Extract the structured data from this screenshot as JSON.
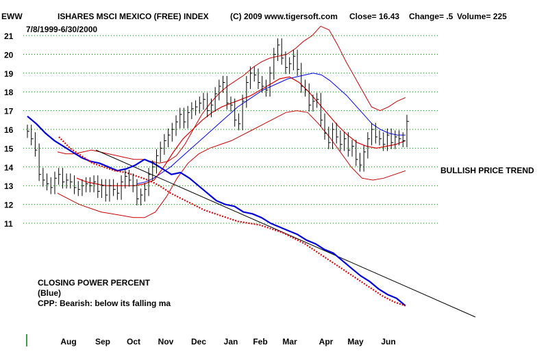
{
  "header": {
    "symbol": "EWW",
    "name": "ISHARES MSCI MEXICO (FREE) INDEX",
    "copyright": "(C) 2009 www.tigersoft.com",
    "close": "Close=  16.43",
    "change": "Change= .5",
    "volume": "Volume= 225",
    "date_range": "7/8/1999-6/30/2000"
  },
  "annotations": {
    "trend": "BULLISH PRICE TREND",
    "cpp_title": "CLOSING POWER PERCENT",
    "cpp_color": "(Blue)",
    "cpp_note": "CPP: Bearish: below its falling ma"
  },
  "colors": {
    "price": "#000000",
    "cpp": "#0000dd",
    "ma": "#dd0000",
    "band": "#cc0000",
    "ma_blue": "#0000ff",
    "grid": "#008000"
  },
  "chart_data": {
    "type": "line",
    "x_labels": [
      "Aug",
      "Sep",
      "Oct",
      "Nov",
      "Dec",
      "Jan",
      "Feb",
      "Mar",
      "Apr",
      "May",
      "Jun"
    ],
    "y_ticks": [
      11,
      12,
      13,
      14,
      15,
      16,
      17,
      18,
      19,
      20,
      21
    ],
    "ylim": [
      10.3,
      21.6
    ],
    "grid": true,
    "price_close": [
      15.9,
      15.5,
      14.9,
      13.6,
      13.3,
      13.1,
      12.9,
      13.4,
      13.6,
      13.2,
      13.3,
      13.2,
      12.9,
      12.8,
      13.0,
      13.1,
      13.0,
      13.2,
      12.7,
      13.0,
      12.5,
      13.0,
      12.8,
      12.6,
      13.2,
      13.5,
      13.3,
      13.0,
      12.3,
      12.5,
      12.8,
      13.6,
      14.0,
      14.6,
      15.0,
      15.4,
      15.7,
      16.0,
      16.4,
      16.8,
      16.4,
      16.9,
      17.1,
      17.2,
      17.4,
      17.6,
      17.0,
      17.3,
      17.9,
      18.3,
      18.5,
      17.4,
      17.3,
      16.5,
      16.3,
      17.5,
      18.5,
      19.0,
      18.9,
      18.5,
      18.3,
      18.1,
      19.0,
      20.0,
      20.5,
      19.8,
      19.3,
      19.5,
      19.9,
      19.2,
      18.3,
      18.1,
      17.3,
      17.5,
      17.6,
      16.5,
      15.8,
      15.3,
      16.0,
      15.6,
      15.2,
      15.5,
      14.9,
      15.1,
      14.4,
      14.1,
      14.8,
      15.5,
      16.0,
      15.6,
      15.5,
      15.2,
      15.7,
      15.3,
      15.6,
      15.5,
      15.4,
      16.43
    ],
    "price_ma": [
      13.4,
      13.2,
      13.1,
      13.0,
      13.0,
      13.0,
      13.0,
      13.1,
      13.3,
      14.0,
      14.8,
      15.5,
      16.0,
      16.5,
      16.9,
      17.2,
      17.4,
      17.6,
      17.8,
      18.1,
      18.4,
      18.7,
      18.8,
      18.5,
      18.0,
      17.4,
      16.8,
      16.2,
      15.7,
      15.3,
      15.1,
      15.0,
      15.1,
      15.2,
      15.4
    ],
    "price_ma_blue": [
      13.1,
      13.2,
      13.4,
      13.7,
      14.0,
      14.4,
      14.8,
      15.2,
      15.6,
      16.0,
      16.4,
      16.8,
      17.2,
      17.5,
      17.8,
      18.1,
      18.3,
      18.5,
      18.7,
      18.8,
      18.9,
      19.0,
      18.9,
      18.6,
      18.2,
      17.8,
      17.3,
      16.8,
      16.3,
      16.0,
      15.8,
      15.7,
      15.7
    ],
    "band_upper": [
      14.8,
      14.7,
      14.7,
      14.8,
      14.9,
      14.8,
      14.7,
      14.6,
      14.5,
      14.4,
      14.4,
      14.3,
      14.2,
      14.3,
      14.6,
      15.2,
      16.0,
      16.8,
      17.4,
      17.9,
      18.3,
      18.6,
      18.9,
      19.3,
      19.6,
      19.8,
      19.9,
      20.0,
      20.3,
      20.7,
      21.0,
      21.5,
      21.3,
      20.5,
      19.6,
      18.8,
      18.0,
      17.2,
      17.0,
      17.2,
      17.5,
      17.7
    ],
    "band_lower": [
      12.6,
      12.3,
      12.0,
      11.8,
      11.6,
      11.5,
      11.4,
      11.3,
      11.3,
      11.6,
      12.4,
      13.4,
      14.2,
      14.7,
      15.0,
      15.2,
      15.4,
      15.7,
      16.0,
      16.3,
      16.6,
      16.9,
      17.0,
      16.9,
      16.3,
      15.6,
      14.8,
      14.0,
      13.4,
      13.3,
      13.4,
      13.6,
      13.8
    ],
    "cpp": [
      16.7,
      16.3,
      15.8,
      15.4,
      15.1,
      14.8,
      14.5,
      14.3,
      14.2,
      14.0,
      13.8,
      13.9,
      14.1,
      14.4,
      14.2,
      13.9,
      13.6,
      13.7,
      13.4,
      13.0,
      12.6,
      12.2,
      12.0,
      11.9,
      11.6,
      11.5,
      11.3,
      11.0,
      10.8,
      10.6,
      10.4,
      10.1,
      9.9,
      9.6,
      9.4,
      9.0,
      8.6,
      8.2,
      7.9,
      7.5,
      7.2,
      7.0,
      6.6
    ],
    "cpp_ma": [
      15.6,
      15.0,
      14.6,
      14.2,
      14.0,
      13.8,
      13.7,
      13.5,
      13.3,
      13.0,
      12.6,
      12.3,
      12.0,
      11.7,
      11.5,
      11.3,
      11.1,
      11.0,
      10.9,
      10.7,
      10.5,
      10.2,
      9.9,
      9.5,
      9.1,
      8.7,
      8.3,
      7.9,
      7.5,
      7.1,
      6.8,
      6.6
    ],
    "trendline": [
      [
        14.9,
        15.0
      ],
      [
        7.0,
        6.0
      ]
    ]
  }
}
